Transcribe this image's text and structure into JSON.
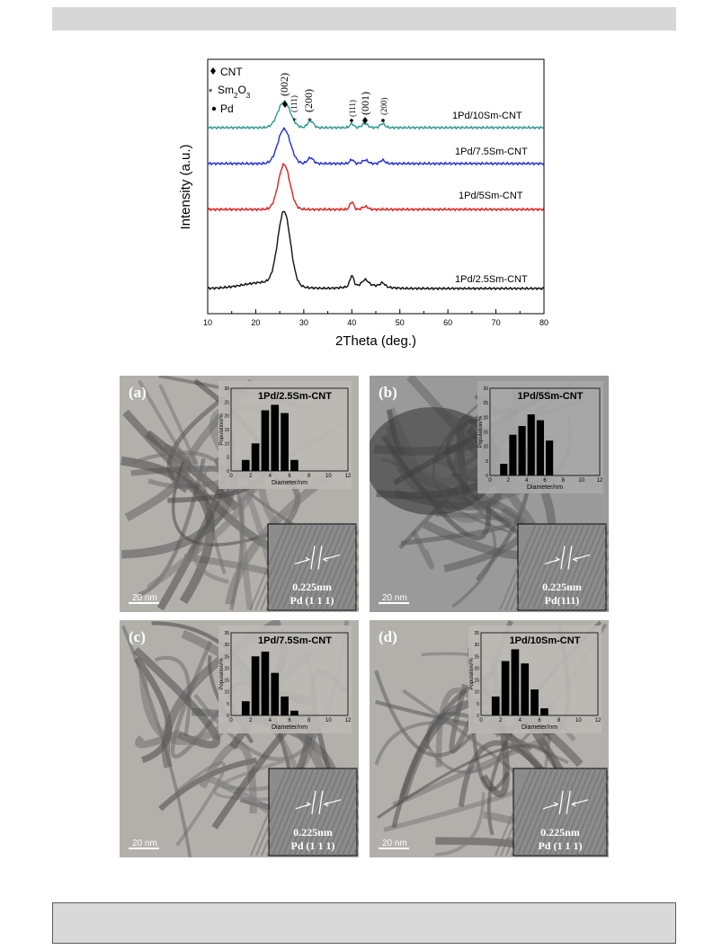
{
  "chart_data": [
    {
      "type": "line",
      "xlabel": "2Theta (deg.)",
      "ylabel": "Intensity (a.u.)",
      "xlim": [
        10,
        80
      ],
      "xticks": [
        10,
        20,
        30,
        40,
        50,
        60,
        70,
        80
      ],
      "legend": [
        {
          "symbol": "diamond",
          "label": "CNT"
        },
        {
          "symbol": "asterisk",
          "label": "Sm2O3"
        },
        {
          "symbol": "dot",
          "label": "Pd"
        }
      ],
      "peak_labels": [
        "(002)",
        "(111)",
        "(200)",
        "(111)",
        "(001)",
        "(200)"
      ],
      "series": [
        {
          "name": "1Pd/10Sm-CNT",
          "color": "#2f9a93",
          "peaks": [
            {
              "x": 25.9,
              "h": 0.45,
              "w": 1.3
            },
            {
              "x": 31.4,
              "h": 0.12,
              "w": 0.6
            },
            {
              "x": 40.0,
              "h": 0.07,
              "w": 0.4
            },
            {
              "x": 42.7,
              "h": 0.07,
              "w": 0.6
            },
            {
              "x": 46.4,
              "h": 0.07,
              "w": 0.5
            }
          ]
        },
        {
          "name": "1Pd/7.5Sm-CNT",
          "color": "#1f2fd8",
          "peaks": [
            {
              "x": 25.9,
              "h": 0.6,
              "w": 1.3
            },
            {
              "x": 31.4,
              "h": 0.1,
              "w": 0.6
            },
            {
              "x": 40.0,
              "h": 0.07,
              "w": 0.4
            },
            {
              "x": 42.8,
              "h": 0.06,
              "w": 0.6
            },
            {
              "x": 46.4,
              "h": 0.06,
              "w": 0.5
            }
          ]
        },
        {
          "name": "1Pd/5Sm-CNT",
          "color": "#e01f1f",
          "peaks": [
            {
              "x": 25.9,
              "h": 0.78,
              "w": 1.2
            },
            {
              "x": 40.0,
              "h": 0.13,
              "w": 0.4
            },
            {
              "x": 42.8,
              "h": 0.05,
              "w": 0.6
            }
          ]
        },
        {
          "name": "1Pd/2.5Sm-CNT",
          "color": "#111111",
          "peaks": [
            {
              "x": 25.9,
              "h": 1.4,
              "w": 1.3
            },
            {
              "x": 40.0,
              "h": 0.2,
              "w": 0.4
            },
            {
              "x": 42.8,
              "h": 0.1,
              "w": 0.6
            },
            {
              "x": 46.4,
              "h": 0.07,
              "w": 0.5
            }
          ]
        }
      ]
    },
    {
      "type": "bar",
      "title": "1Pd/2.5Sm-CNT",
      "xlabel": "Diameter/nm",
      "ylabel": "Population/%",
      "xlim": [
        0,
        12
      ],
      "ylim": [
        0,
        30
      ],
      "xticks": [
        0,
        2,
        4,
        6,
        8,
        10,
        12
      ],
      "yticks": [
        0,
        5,
        10,
        15,
        20,
        25,
        30
      ],
      "categories": [
        1.5,
        2.5,
        3.5,
        4.5,
        5.5,
        6.5
      ],
      "values": [
        4,
        10,
        22,
        24,
        21,
        4
      ]
    },
    {
      "type": "bar",
      "title": "1Pd/5Sm-CNT",
      "xlabel": "Diameter/nm",
      "ylabel": "Population/%",
      "xlim": [
        0,
        12
      ],
      "ylim": [
        0,
        30
      ],
      "xticks": [
        0,
        2,
        4,
        6,
        8,
        10,
        12
      ],
      "yticks": [
        0,
        5,
        10,
        15,
        20,
        25,
        30
      ],
      "categories": [
        1.5,
        2.5,
        3.5,
        4.5,
        5.5,
        6.5
      ],
      "values": [
        4,
        14,
        17,
        21,
        19,
        12
      ]
    },
    {
      "type": "bar",
      "title": "1Pd/7.5Sm-CNT",
      "xlabel": "Diameter/nm",
      "ylabel": "Population/%",
      "xlim": [
        0,
        12
      ],
      "ylim": [
        0,
        35
      ],
      "xticks": [
        0,
        2,
        4,
        6,
        8,
        10,
        12
      ],
      "yticks": [
        0,
        5,
        10,
        15,
        20,
        25,
        30,
        35
      ],
      "categories": [
        1.5,
        2.5,
        3.5,
        4.5,
        5.5,
        6.5
      ],
      "values": [
        6,
        25,
        27,
        18,
        8,
        2
      ]
    },
    {
      "type": "bar",
      "title": "1Pd/10Sm-CNT",
      "xlabel": "Diameter/nm",
      "ylabel": "Population/%",
      "xlim": [
        0,
        12
      ],
      "ylim": [
        0,
        35
      ],
      "xticks": [
        0,
        2,
        4,
        6,
        8,
        10,
        12
      ],
      "yticks": [
        0,
        5,
        10,
        15,
        20,
        25,
        30,
        35
      ],
      "categories": [
        1.5,
        2.5,
        3.5,
        4.5,
        5.5,
        6.5
      ],
      "values": [
        8,
        23,
        28,
        22,
        11,
        3
      ]
    }
  ],
  "panels": [
    {
      "letter": "(a)",
      "scale": "20 nm",
      "lattice": "0.225nm",
      "plane": "Pd (1 1 1)"
    },
    {
      "letter": "(b)",
      "scale": "20 nm",
      "lattice": "0.225nm",
      "plane": "Pd(111)"
    },
    {
      "letter": "(c)",
      "scale": "20 nm",
      "lattice": "0.225nm",
      "plane": "Pd (1 1 1)"
    },
    {
      "letter": "(d)",
      "scale": "20 nm",
      "lattice": "0.225nm",
      "plane": "Pd (1 1 1)"
    }
  ]
}
